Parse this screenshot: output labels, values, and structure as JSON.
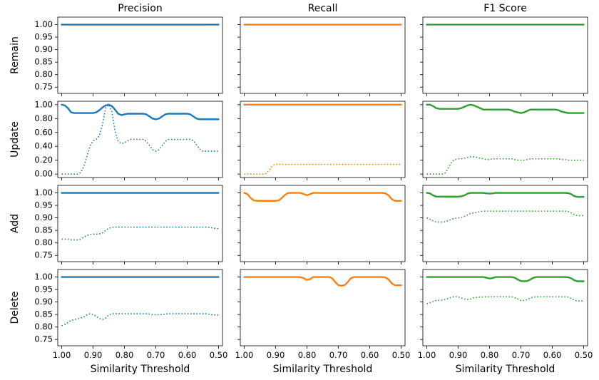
{
  "chart_data": {
    "type": "line",
    "x_label": "Similarity Threshold",
    "columns": [
      "Precision",
      "Recall",
      "F1 Score"
    ],
    "rows": [
      "Remain",
      "Update",
      "Add",
      "Delete"
    ],
    "x_ticks": [
      "1.00",
      "0.90",
      "0.80",
      "0.70",
      "0.60",
      "0.50"
    ],
    "x_range": [
      1.0,
      0.5
    ],
    "x_values": [
      1.0,
      0.99,
      0.98,
      0.97,
      0.96,
      0.95,
      0.94,
      0.93,
      0.92,
      0.91,
      0.9,
      0.89,
      0.88,
      0.87,
      0.86,
      0.85,
      0.84,
      0.83,
      0.82,
      0.81,
      0.8,
      0.79,
      0.78,
      0.77,
      0.76,
      0.75,
      0.74,
      0.73,
      0.72,
      0.71,
      0.7,
      0.69,
      0.68,
      0.67,
      0.66,
      0.65,
      0.64,
      0.63,
      0.62,
      0.61,
      0.6,
      0.59,
      0.58,
      0.57,
      0.56,
      0.55,
      0.54,
      0.53,
      0.52,
      0.51,
      0.5
    ],
    "colors": {
      "Precision": "#1f77b4",
      "Recall": "#ff7f0e",
      "F1 Score": "#2ca02c"
    },
    "row_axes": [
      {
        "row": "Remain",
        "ylim": [
          0.725,
          1.03
        ],
        "y_ticks": [
          "1.00",
          "0.95",
          "0.90",
          "0.85",
          "0.80",
          "0.75"
        ],
        "y_tick_values": [
          1.0,
          0.95,
          0.9,
          0.85,
          0.8,
          0.75
        ]
      },
      {
        "row": "Update",
        "ylim": [
          -0.05,
          1.05
        ],
        "y_ticks": [
          "1.00",
          "0.80",
          "0.60",
          "0.40",
          "0.20",
          "0.00"
        ],
        "y_tick_values": [
          1.0,
          0.8,
          0.6,
          0.4,
          0.2,
          0.0
        ]
      },
      {
        "row": "Add",
        "ylim": [
          0.725,
          1.03
        ],
        "y_ticks": [
          "1.00",
          "0.95",
          "0.90",
          "0.85",
          "0.80",
          "0.75"
        ],
        "y_tick_values": [
          1.0,
          0.95,
          0.9,
          0.85,
          0.8,
          0.75
        ]
      },
      {
        "row": "Delete",
        "ylim": [
          0.725,
          1.03
        ],
        "y_ticks": [
          "1.00",
          "0.95",
          "0.90",
          "0.85",
          "0.80",
          "0.75"
        ],
        "y_tick_values": [
          1.0,
          0.95,
          0.9,
          0.85,
          0.8,
          0.75
        ]
      }
    ],
    "series": [
      {
        "row": "Remain",
        "metric": "Precision",
        "style": "solid",
        "values": [
          1,
          1,
          1,
          1,
          1,
          1,
          1,
          1,
          1,
          1,
          1,
          1,
          1,
          1,
          1,
          1,
          1,
          1,
          1,
          1,
          1,
          1,
          1,
          1,
          1,
          1,
          1,
          1,
          1,
          1,
          1,
          1,
          1,
          1,
          1,
          1,
          1,
          1,
          1,
          1,
          1,
          1,
          1,
          1,
          1,
          1,
          1,
          1,
          1,
          1,
          1
        ]
      },
      {
        "row": "Remain",
        "metric": "Recall",
        "style": "solid",
        "values": [
          1,
          1,
          1,
          1,
          1,
          1,
          1,
          1,
          1,
          1,
          1,
          1,
          1,
          1,
          1,
          1,
          1,
          1,
          1,
          1,
          1,
          1,
          1,
          1,
          1,
          1,
          1,
          1,
          1,
          1,
          1,
          1,
          1,
          1,
          1,
          1,
          1,
          1,
          1,
          1,
          1,
          1,
          1,
          1,
          1,
          1,
          1,
          1,
          1,
          1,
          1
        ]
      },
      {
        "row": "Remain",
        "metric": "F1 Score",
        "style": "solid",
        "values": [
          1,
          1,
          1,
          1,
          1,
          1,
          1,
          1,
          1,
          1,
          1,
          1,
          1,
          1,
          1,
          1,
          1,
          1,
          1,
          1,
          1,
          1,
          1,
          1,
          1,
          1,
          1,
          1,
          1,
          1,
          1,
          1,
          1,
          1,
          1,
          1,
          1,
          1,
          1,
          1,
          1,
          1,
          1,
          1,
          1,
          1,
          1,
          1,
          1,
          1,
          1
        ]
      },
      {
        "row": "Update",
        "metric": "Precision",
        "style": "solid",
        "values": [
          1.0,
          0.99,
          0.95,
          0.89,
          0.88,
          0.88,
          0.88,
          0.88,
          0.88,
          0.88,
          0.88,
          0.89,
          0.92,
          0.96,
          0.99,
          1.0,
          0.98,
          0.93,
          0.87,
          0.85,
          0.86,
          0.87,
          0.87,
          0.87,
          0.87,
          0.87,
          0.87,
          0.86,
          0.83,
          0.8,
          0.79,
          0.8,
          0.83,
          0.86,
          0.87,
          0.87,
          0.87,
          0.87,
          0.87,
          0.87,
          0.87,
          0.86,
          0.83,
          0.8,
          0.79,
          0.79,
          0.79,
          0.79,
          0.79,
          0.79,
          0.79
        ]
      },
      {
        "row": "Update",
        "metric": "Precision",
        "style": "dotted",
        "values": [
          0.0,
          0.0,
          0.0,
          0.0,
          0.0,
          0.0,
          0.02,
          0.1,
          0.25,
          0.4,
          0.48,
          0.5,
          0.55,
          0.72,
          0.95,
          1.0,
          0.9,
          0.62,
          0.47,
          0.44,
          0.45,
          0.48,
          0.5,
          0.5,
          0.5,
          0.5,
          0.5,
          0.47,
          0.41,
          0.35,
          0.33,
          0.35,
          0.41,
          0.47,
          0.5,
          0.5,
          0.5,
          0.5,
          0.5,
          0.5,
          0.5,
          0.5,
          0.48,
          0.42,
          0.36,
          0.33,
          0.33,
          0.33,
          0.33,
          0.33,
          0.33
        ]
      },
      {
        "row": "Update",
        "metric": "Recall",
        "style": "solid",
        "values": [
          1,
          1,
          1,
          1,
          1,
          1,
          1,
          1,
          1,
          1,
          1,
          1,
          1,
          1,
          1,
          1,
          1,
          1,
          1,
          1,
          1,
          1,
          1,
          1,
          1,
          1,
          1,
          1,
          1,
          1,
          1,
          1,
          1,
          1,
          1,
          1,
          1,
          1,
          1,
          1,
          1,
          1,
          1,
          1,
          1,
          1,
          1,
          1,
          1,
          1,
          1
        ]
      },
      {
        "row": "Update",
        "metric": "Recall",
        "style": "dotted",
        "values": [
          0.0,
          0.0,
          0.0,
          0.0,
          0.0,
          0.0,
          0.0,
          0.01,
          0.06,
          0.12,
          0.14,
          0.14,
          0.14,
          0.14,
          0.14,
          0.14,
          0.14,
          0.14,
          0.14,
          0.14,
          0.14,
          0.14,
          0.14,
          0.14,
          0.14,
          0.14,
          0.14,
          0.14,
          0.14,
          0.14,
          0.14,
          0.14,
          0.14,
          0.14,
          0.14,
          0.14,
          0.14,
          0.14,
          0.14,
          0.14,
          0.14,
          0.14,
          0.14,
          0.14,
          0.14,
          0.14,
          0.14,
          0.14,
          0.14,
          0.14,
          0.14
        ]
      },
      {
        "row": "Update",
        "metric": "F1 Score",
        "style": "solid",
        "values": [
          1.0,
          1.0,
          0.98,
          0.95,
          0.94,
          0.94,
          0.94,
          0.94,
          0.94,
          0.94,
          0.94,
          0.95,
          0.97,
          0.99,
          1.0,
          0.99,
          0.97,
          0.95,
          0.93,
          0.93,
          0.93,
          0.93,
          0.93,
          0.93,
          0.93,
          0.93,
          0.93,
          0.92,
          0.9,
          0.89,
          0.88,
          0.89,
          0.91,
          0.93,
          0.93,
          0.93,
          0.93,
          0.93,
          0.93,
          0.93,
          0.93,
          0.93,
          0.92,
          0.9,
          0.89,
          0.88,
          0.88,
          0.88,
          0.88,
          0.88,
          0.88
        ]
      },
      {
        "row": "Update",
        "metric": "F1 Score",
        "style": "dotted",
        "values": [
          0.0,
          0.0,
          0.0,
          0.0,
          0.0,
          0.0,
          0.02,
          0.1,
          0.18,
          0.21,
          0.22,
          0.22,
          0.23,
          0.24,
          0.25,
          0.25,
          0.24,
          0.23,
          0.22,
          0.21,
          0.21,
          0.22,
          0.22,
          0.22,
          0.22,
          0.22,
          0.22,
          0.22,
          0.21,
          0.2,
          0.2,
          0.2,
          0.21,
          0.22,
          0.22,
          0.22,
          0.22,
          0.22,
          0.22,
          0.22,
          0.22,
          0.22,
          0.22,
          0.21,
          0.21,
          0.2,
          0.2,
          0.2,
          0.2,
          0.2,
          0.2
        ]
      },
      {
        "row": "Add",
        "metric": "Precision",
        "style": "solid",
        "values": [
          1,
          1,
          1,
          1,
          1,
          1,
          1,
          1,
          1,
          1,
          1,
          1,
          1,
          1,
          1,
          1,
          1,
          1,
          1,
          1,
          1,
          1,
          1,
          1,
          1,
          1,
          1,
          1,
          1,
          1,
          1,
          1,
          1,
          1,
          1,
          1,
          1,
          1,
          1,
          1,
          1,
          1,
          1,
          1,
          1,
          1,
          1,
          1,
          1,
          1,
          1
        ]
      },
      {
        "row": "Add",
        "metric": "Precision",
        "style": "dotted",
        "values": [
          0.815,
          0.815,
          0.815,
          0.812,
          0.812,
          0.812,
          0.815,
          0.822,
          0.83,
          0.833,
          0.835,
          0.835,
          0.836,
          0.84,
          0.85,
          0.858,
          0.862,
          0.863,
          0.863,
          0.863,
          0.863,
          0.863,
          0.863,
          0.863,
          0.863,
          0.863,
          0.863,
          0.863,
          0.863,
          0.863,
          0.863,
          0.863,
          0.863,
          0.863,
          0.863,
          0.863,
          0.863,
          0.863,
          0.863,
          0.863,
          0.863,
          0.863,
          0.863,
          0.863,
          0.863,
          0.863,
          0.863,
          0.862,
          0.86,
          0.858,
          0.857
        ]
      },
      {
        "row": "Add",
        "metric": "Recall",
        "style": "solid",
        "values": [
          1.0,
          0.995,
          0.98,
          0.97,
          0.968,
          0.968,
          0.968,
          0.968,
          0.968,
          0.968,
          0.968,
          0.97,
          0.98,
          0.992,
          1.0,
          1.0,
          1.0,
          1.0,
          1.0,
          0.995,
          0.99,
          0.995,
          1.0,
          1.0,
          1.0,
          1.0,
          1.0,
          1.0,
          1.0,
          1.0,
          1.0,
          1.0,
          1.0,
          1.0,
          1.0,
          1.0,
          1.0,
          1.0,
          1.0,
          1.0,
          1.0,
          1.0,
          1.0,
          1.0,
          1.0,
          0.998,
          0.99,
          0.975,
          0.968,
          0.968,
          0.968
        ]
      },
      {
        "row": "Add",
        "metric": "F1 Score",
        "style": "solid",
        "values": [
          1.0,
          0.998,
          0.99,
          0.985,
          0.985,
          0.985,
          0.985,
          0.985,
          0.985,
          0.985,
          0.985,
          0.986,
          0.99,
          0.997,
          1.0,
          1.0,
          1.0,
          1.0,
          1.0,
          0.998,
          0.997,
          0.998,
          1.0,
          1.0,
          1.0,
          1.0,
          1.0,
          1.0,
          1.0,
          1.0,
          1.0,
          1.0,
          1.0,
          1.0,
          1.0,
          1.0,
          1.0,
          1.0,
          1.0,
          1.0,
          1.0,
          1.0,
          1.0,
          1.0,
          1.0,
          0.999,
          0.995,
          0.987,
          0.984,
          0.984,
          0.984
        ]
      },
      {
        "row": "Add",
        "metric": "F1 Score",
        "style": "dotted",
        "values": [
          0.9,
          0.895,
          0.888,
          0.884,
          0.883,
          0.883,
          0.885,
          0.89,
          0.895,
          0.898,
          0.9,
          0.902,
          0.906,
          0.912,
          0.918,
          0.92,
          0.922,
          0.925,
          0.927,
          0.927,
          0.927,
          0.927,
          0.927,
          0.927,
          0.927,
          0.927,
          0.927,
          0.927,
          0.927,
          0.927,
          0.927,
          0.927,
          0.927,
          0.927,
          0.927,
          0.927,
          0.927,
          0.927,
          0.927,
          0.927,
          0.927,
          0.927,
          0.927,
          0.927,
          0.927,
          0.926,
          0.92,
          0.913,
          0.909,
          0.909,
          0.909
        ]
      },
      {
        "row": "Delete",
        "metric": "Precision",
        "style": "solid",
        "values": [
          1,
          1,
          1,
          1,
          1,
          1,
          1,
          1,
          1,
          1,
          1,
          1,
          1,
          1,
          1,
          1,
          1,
          1,
          1,
          1,
          1,
          1,
          1,
          1,
          1,
          1,
          1,
          1,
          1,
          1,
          1,
          1,
          1,
          1,
          1,
          1,
          1,
          1,
          1,
          1,
          1,
          1,
          1,
          1,
          1,
          1,
          1,
          1,
          1,
          1,
          1
        ]
      },
      {
        "row": "Delete",
        "metric": "Precision",
        "style": "dotted",
        "values": [
          0.805,
          0.81,
          0.818,
          0.826,
          0.83,
          0.832,
          0.836,
          0.84,
          0.848,
          0.853,
          0.85,
          0.843,
          0.834,
          0.83,
          0.836,
          0.848,
          0.853,
          0.853,
          0.853,
          0.853,
          0.853,
          0.853,
          0.853,
          0.853,
          0.853,
          0.853,
          0.853,
          0.853,
          0.852,
          0.85,
          0.849,
          0.849,
          0.85,
          0.852,
          0.853,
          0.853,
          0.853,
          0.853,
          0.853,
          0.853,
          0.853,
          0.853,
          0.853,
          0.853,
          0.853,
          0.853,
          0.853,
          0.851,
          0.849,
          0.848,
          0.848
        ]
      },
      {
        "row": "Delete",
        "metric": "Recall",
        "style": "solid",
        "values": [
          1,
          1,
          1,
          1,
          1,
          1,
          1,
          1,
          1,
          1,
          1,
          1,
          1,
          1,
          1,
          1,
          1,
          1,
          0.999,
          0.995,
          0.988,
          0.992,
          1.0,
          1.0,
          1.0,
          1.0,
          1.0,
          1.0,
          0.995,
          0.98,
          0.967,
          0.965,
          0.967,
          0.98,
          0.995,
          1.0,
          1.0,
          1.0,
          1.0,
          1.0,
          1.0,
          1.0,
          1.0,
          1.0,
          1.0,
          0.998,
          0.99,
          0.975,
          0.967,
          0.967,
          0.967
        ]
      },
      {
        "row": "Delete",
        "metric": "F1 Score",
        "style": "solid",
        "values": [
          1,
          1,
          1,
          1,
          1,
          1,
          1,
          1,
          1,
          1,
          1,
          1,
          1,
          1,
          1,
          1,
          1,
          1,
          1,
          0.997,
          0.994,
          0.996,
          1.0,
          1.0,
          1.0,
          1.0,
          1.0,
          1.0,
          0.997,
          0.99,
          0.984,
          0.983,
          0.984,
          0.99,
          0.997,
          1.0,
          1.0,
          1.0,
          1.0,
          1.0,
          1.0,
          1.0,
          1.0,
          1.0,
          1.0,
          0.999,
          0.995,
          0.987,
          0.983,
          0.983,
          0.983
        ]
      },
      {
        "row": "Delete",
        "metric": "F1 Score",
        "style": "dotted",
        "values": [
          0.893,
          0.897,
          0.902,
          0.906,
          0.907,
          0.908,
          0.911,
          0.915,
          0.92,
          0.922,
          0.921,
          0.916,
          0.912,
          0.91,
          0.912,
          0.917,
          0.919,
          0.92,
          0.92,
          0.921,
          0.921,
          0.921,
          0.921,
          0.921,
          0.921,
          0.921,
          0.921,
          0.921,
          0.918,
          0.912,
          0.906,
          0.906,
          0.91,
          0.916,
          0.92,
          0.921,
          0.921,
          0.921,
          0.921,
          0.921,
          0.921,
          0.921,
          0.921,
          0.921,
          0.921,
          0.92,
          0.915,
          0.908,
          0.904,
          0.904,
          0.904
        ]
      }
    ]
  }
}
